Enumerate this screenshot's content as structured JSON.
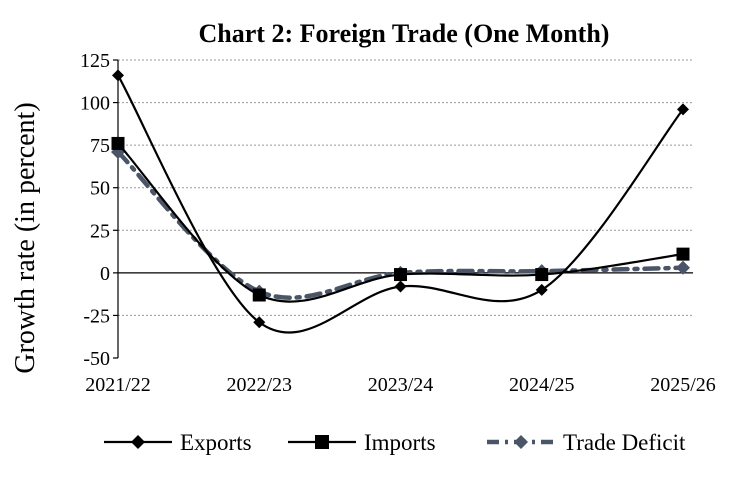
{
  "chart_data": {
    "type": "line",
    "title": "Chart 2: Foreign Trade (One Month)",
    "xlabel": "",
    "ylabel": "Growth rate (in percent)",
    "categories": [
      "2021/22",
      "2022/23",
      "2023/24",
      "2024/25",
      "2025/26"
    ],
    "ylim": [
      -50,
      125
    ],
    "yticks": [
      125,
      100,
      75,
      50,
      25,
      0,
      -25,
      -50
    ],
    "ytick_labels": [
      "125",
      "100",
      "75",
      "50",
      "25",
      "0",
      "-25",
      "-50"
    ],
    "grid": true,
    "legend_position": "bottom",
    "series": [
      {
        "name": "Exports",
        "values": [
          116,
          -29,
          -8,
          -10,
          96
        ],
        "color": "#000000",
        "marker": "diamond",
        "dashed": false
      },
      {
        "name": "Imports",
        "values": [
          76,
          -13,
          -1,
          -1,
          11
        ],
        "color": "#000000",
        "marker": "square",
        "dashed": false
      },
      {
        "name": "Trade Deficit",
        "values": [
          71,
          -11,
          0,
          1,
          3
        ],
        "color": "#4a5568",
        "marker": "diamond",
        "dashed": true
      }
    ]
  }
}
